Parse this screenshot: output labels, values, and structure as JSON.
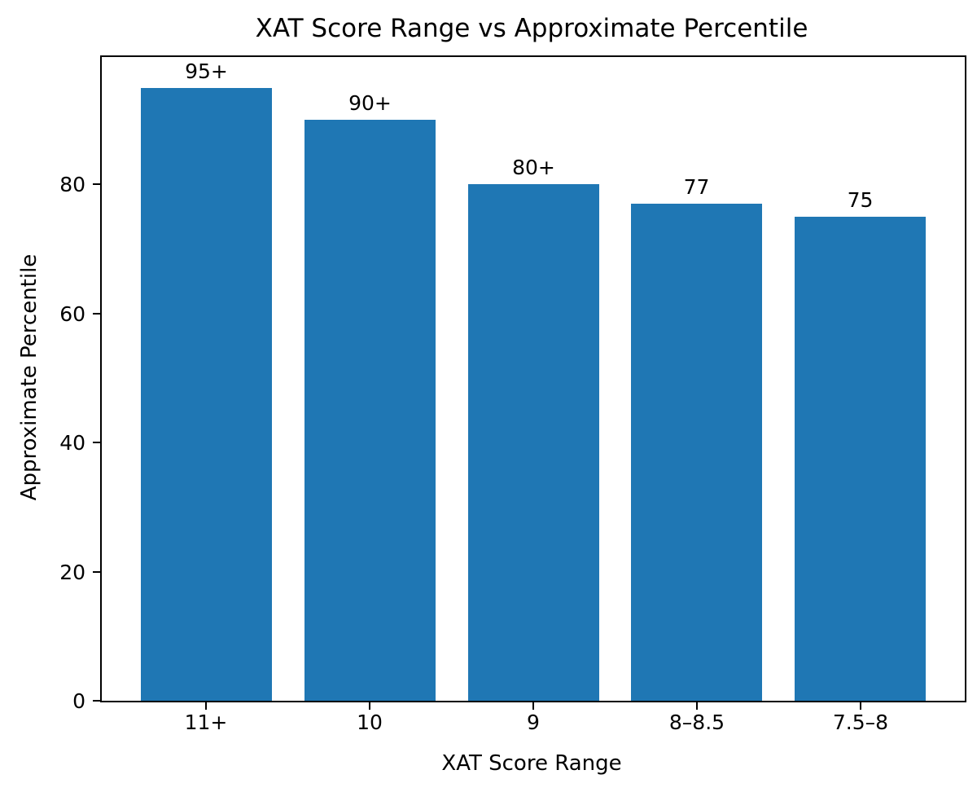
{
  "chart_data": {
    "type": "bar",
    "title": "XAT Score Range vs Approximate Percentile",
    "xlabel": "XAT Score Range",
    "ylabel": "Approximate Percentile",
    "categories": [
      "11+",
      "10",
      "9",
      "8–8.5",
      "7.5–8"
    ],
    "values": [
      95,
      90,
      80,
      77,
      75
    ],
    "bar_labels": [
      "95+",
      "90+",
      "80+",
      "77",
      "75"
    ],
    "yticks": [
      0,
      20,
      40,
      60,
      80
    ],
    "ylim": [
      0,
      99.75
    ],
    "bar_color": "#1f77b4",
    "grid": false,
    "legend": false,
    "background_color": "#ffffff",
    "axis_color": "#000000"
  }
}
